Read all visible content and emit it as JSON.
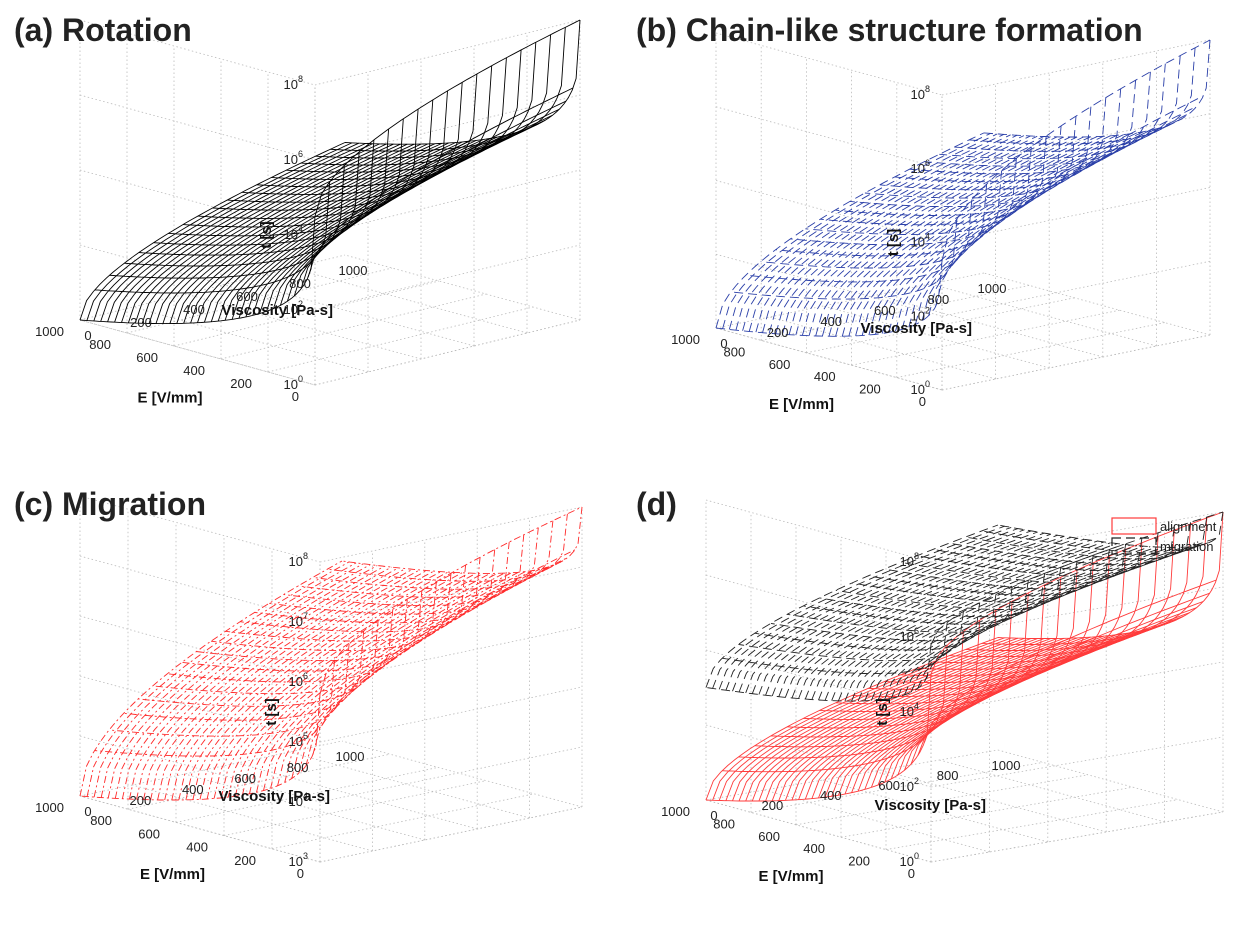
{
  "figure": {
    "panels": [
      {
        "id": "a",
        "title": "(a) Rotation"
      },
      {
        "id": "b",
        "title": "(b) Chain-like structure formation"
      },
      {
        "id": "c",
        "title": "(c) Migration"
      },
      {
        "id": "d",
        "title": "(d)"
      }
    ]
  },
  "chart_data": [
    {
      "type": "surface",
      "title": "(a) Rotation",
      "xlabel": "E [V/mm]",
      "ylabel": "Viscosity [Pa-s]",
      "zlabel": "t [s]",
      "z_scale": "log",
      "xlim": [
        0,
        1000
      ],
      "ylim": [
        0,
        1000
      ],
      "zlim_exp": [
        0,
        8
      ],
      "x_ticks": [
        "0",
        "200",
        "400",
        "600",
        "800",
        "1000"
      ],
      "y_ticks": [
        "0",
        "200",
        "400",
        "600",
        "800",
        "1000"
      ],
      "z_tick_exponents": [
        "0",
        "2",
        "4",
        "6",
        "8"
      ],
      "grid": true,
      "series": [
        {
          "line_style": "solid",
          "color": "#000000",
          "z_exp_corners": {
            "E_min_visc_min": 4.5,
            "E_min_visc_max": 8.0,
            "E_max_visc_min": 0.0,
            "E_max_visc_max": 3.0
          }
        }
      ]
    },
    {
      "type": "surface",
      "title": "(b) Chain-like structure formation",
      "xlabel": "E [V/mm]",
      "ylabel": "Viscosity [Pa-s]",
      "zlabel": "t [s]",
      "z_scale": "log",
      "xlim": [
        0,
        1000
      ],
      "ylim": [
        0,
        1000
      ],
      "zlim_exp": [
        0,
        8
      ],
      "x_ticks": [
        "0",
        "200",
        "400",
        "600",
        "800",
        "1000"
      ],
      "y_ticks": [
        "0",
        "200",
        "400",
        "600",
        "800",
        "1000"
      ],
      "z_tick_exponents": [
        "0",
        "2",
        "4",
        "6",
        "8"
      ],
      "grid": true,
      "series": [
        {
          "line_style": "dashed",
          "color": "#2a3fa8",
          "z_exp_corners": {
            "E_min_visc_min": 3.5,
            "E_min_visc_max": 8.0,
            "E_max_visc_min": 0.0,
            "E_max_visc_max": 3.8
          }
        }
      ]
    },
    {
      "type": "surface",
      "title": "(c) Migration",
      "xlabel": "E [V/mm]",
      "ylabel": "Viscosity [Pa-s]",
      "zlabel": "t [s]",
      "z_scale": "log",
      "xlim": [
        0,
        1000
      ],
      "ylim": [
        0,
        1000
      ],
      "zlim_exp": [
        3,
        8
      ],
      "x_ticks": [
        "0",
        "200",
        "400",
        "600",
        "800",
        "1000"
      ],
      "y_ticks": [
        "0",
        "200",
        "400",
        "600",
        "800",
        "1000"
      ],
      "z_tick_exponents": [
        "3",
        "4",
        "5",
        "6",
        "7",
        "8"
      ],
      "grid": true,
      "series": [
        {
          "line_style": "dash-dot",
          "color": "#ff2a2a",
          "z_exp_corners": {
            "E_min_visc_min": 5.8,
            "E_min_visc_max": 8.0,
            "E_max_visc_min": 3.0,
            "E_max_visc_max": 6.0
          }
        }
      ]
    },
    {
      "type": "surface",
      "title": "(d)",
      "xlabel": "E [V/mm]",
      "ylabel": "Viscosity [Pa-s]",
      "zlabel": "t [s]",
      "z_scale": "log",
      "xlim": [
        0,
        1000
      ],
      "ylim": [
        0,
        1000
      ],
      "zlim_exp": [
        0,
        8
      ],
      "x_ticks": [
        "0",
        "200",
        "400",
        "600",
        "800",
        "1000"
      ],
      "y_ticks": [
        "0",
        "200",
        "400",
        "600",
        "800",
        "1000"
      ],
      "z_tick_exponents": [
        "0",
        "2",
        "4",
        "6",
        "8"
      ],
      "grid": true,
      "legend_position": "top-right",
      "series": [
        {
          "name": "alignment",
          "line_style": "solid",
          "color": "#ff3b3b",
          "z_exp_corners": {
            "E_min_visc_min": 5.0,
            "E_min_visc_max": 8.0,
            "E_max_visc_min": 0.0,
            "E_max_visc_max": 3.0
          }
        },
        {
          "name": "migration",
          "line_style": "dashed",
          "color": "#222222",
          "z_exp_corners": {
            "E_min_visc_min": 5.8,
            "E_min_visc_max": 8.0,
            "E_max_visc_min": 3.0,
            "E_max_visc_max": 6.0
          }
        }
      ]
    }
  ]
}
